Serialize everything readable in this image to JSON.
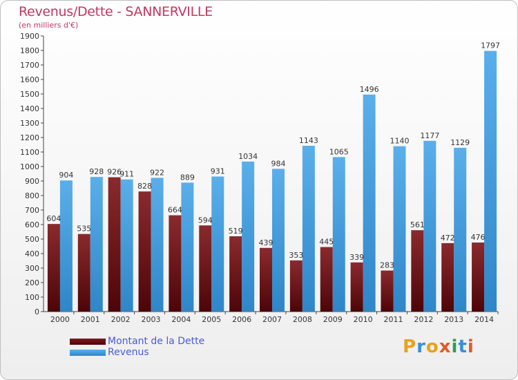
{
  "title": "Revenus/Dette - SANNERVILLE",
  "subtitle": "(en milliers d'€)",
  "logo": "Proxiti",
  "colors": {
    "dette": "#7a1a1e",
    "revenus": "#4ba3e3",
    "title": "#c0395e"
  },
  "legend": [
    {
      "label": "Montant de la Dette"
    },
    {
      "label": "Revenus"
    }
  ],
  "chart_data": {
    "type": "bar",
    "title": "Revenus/Dette - SANNERVILLE",
    "subtitle": "(en milliers d'€)",
    "categories": [
      "2000",
      "2001",
      "2002",
      "2003",
      "2004",
      "2005",
      "2006",
      "2007",
      "2008",
      "2009",
      "2010",
      "2011",
      "2012",
      "2013",
      "2014"
    ],
    "series": [
      {
        "name": "Montant de la Dette",
        "values": [
          604,
          535,
          926,
          828,
          664,
          594,
          519,
          439,
          353,
          445,
          339,
          283,
          561,
          472,
          476
        ]
      },
      {
        "name": "Revenus",
        "values": [
          904,
          928,
          911,
          922,
          889,
          931,
          1034,
          984,
          1143,
          1065,
          1496,
          1140,
          1177,
          1129,
          1797
        ]
      }
    ],
    "ylim": [
      0,
      1900
    ],
    "yticks": [
      0,
      100,
      200,
      300,
      400,
      500,
      600,
      700,
      800,
      900,
      1000,
      1100,
      1200,
      1300,
      1400,
      1500,
      1600,
      1700,
      1800,
      1900
    ],
    "grid": false,
    "legend_position": "bottom-left"
  }
}
